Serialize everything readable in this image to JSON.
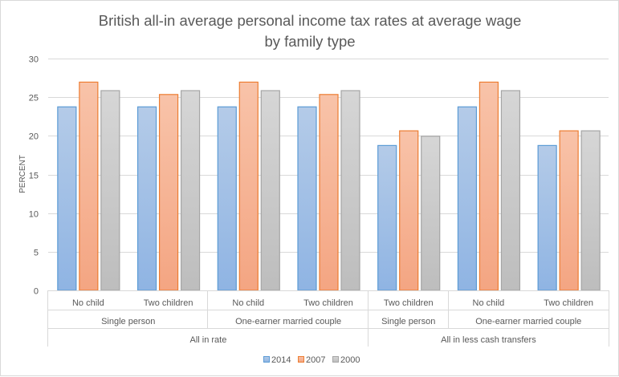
{
  "chart_data": {
    "type": "bar",
    "title": [
      "British all-in average personal income tax rates at average wage",
      "by family type"
    ],
    "ylabel": "PERCENT",
    "xlabel": "",
    "ylim": [
      0,
      30
    ],
    "yticks": [
      0,
      5,
      10,
      15,
      20,
      25,
      30
    ],
    "grid": true,
    "legend_position": "bottom",
    "categories": [
      {
        "level3": "No child",
        "level2": "Single person",
        "level1": "All in rate"
      },
      {
        "level3": "Two children",
        "level2": "Single person",
        "level1": "All in rate"
      },
      {
        "level3": "No child",
        "level2": "One-earner married couple",
        "level1": "All in rate"
      },
      {
        "level3": "Two children",
        "level2": "One-earner married couple",
        "level1": "All in rate"
      },
      {
        "level3": "Two children",
        "level2": "Single person",
        "level1": "All in less cash transfers"
      },
      {
        "level3": "No child",
        "level2": "One-earner married couple",
        "level1": "All in less cash transfers"
      },
      {
        "level3": "Two children",
        "level2": "One-earner married couple",
        "level1": "All in less cash transfers"
      }
    ],
    "level2_groups": [
      {
        "label": "Single person",
        "span": 2
      },
      {
        "label": "One-earner married couple",
        "span": 2
      },
      {
        "label": "Single person",
        "span": 1
      },
      {
        "label": "One-earner married couple",
        "span": 2
      }
    ],
    "level1_groups": [
      {
        "label": "All in rate",
        "span": 4
      },
      {
        "label": "All in less cash transfers",
        "span": 3
      }
    ],
    "series": [
      {
        "name": "2014",
        "values": [
          23.8,
          23.8,
          23.8,
          23.8,
          18.8,
          23.8,
          18.8
        ],
        "color_top": "#b4cbe8",
        "color_bottom": "#8fb4e3",
        "stroke": "#5b9bd5"
      },
      {
        "name": "2007",
        "values": [
          27.0,
          25.4,
          27.0,
          25.4,
          20.7,
          27.0,
          20.7
        ],
        "color_top": "#f8c3a9",
        "color_bottom": "#f4a582",
        "stroke": "#ed7d31"
      },
      {
        "name": "2000",
        "values": [
          25.9,
          25.9,
          25.9,
          25.9,
          20.0,
          25.9,
          20.7
        ],
        "color_top": "#d6d6d6",
        "color_bottom": "#bdbdbd",
        "stroke": "#a5a5a5"
      }
    ]
  }
}
